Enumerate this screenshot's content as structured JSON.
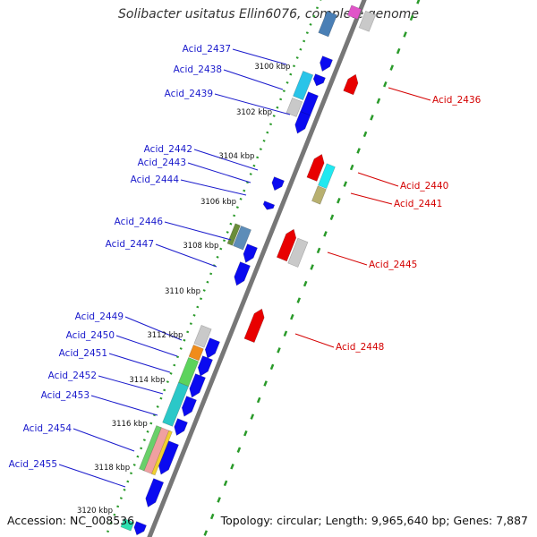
{
  "header": {
    "title": "Solibacter usitatus Ellin6076, complete genome"
  },
  "footer": {
    "accession": "Accession: NC_008536",
    "topology": "Topology: circular; Length: 9,965,640 bp; Genes: 7,887"
  },
  "kbp_ticks": [
    "3100 kbp",
    "3102 kbp",
    "3104 kbp",
    "3106 kbp",
    "3108 kbp",
    "3110 kbp",
    "3112 kbp",
    "3114 kbp",
    "3116 kbp",
    "3118 kbp",
    "3120 kbp"
  ],
  "genes_left": [
    "Acid_2437",
    "Acid_2438",
    "Acid_2439",
    "Acid_2442",
    "Acid_2443",
    "Acid_2444",
    "Acid_2446",
    "Acid_2447",
    "Acid_2449",
    "Acid_2450",
    "Acid_2451",
    "Acid_2452",
    "Acid_2453",
    "Acid_2454",
    "Acid_2455"
  ],
  "genes_right": [
    "Acid_2436",
    "Acid_2440",
    "Acid_2441",
    "Acid_2445",
    "Acid_2448"
  ],
  "colors": {
    "forward_strand": "#0a0af0",
    "reverse_strand": "#e80000",
    "backbone": "#777777",
    "dotted_track": "#2a9a2a",
    "label_forward": "#1a1acc",
    "label_reverse": "#d40000"
  }
}
